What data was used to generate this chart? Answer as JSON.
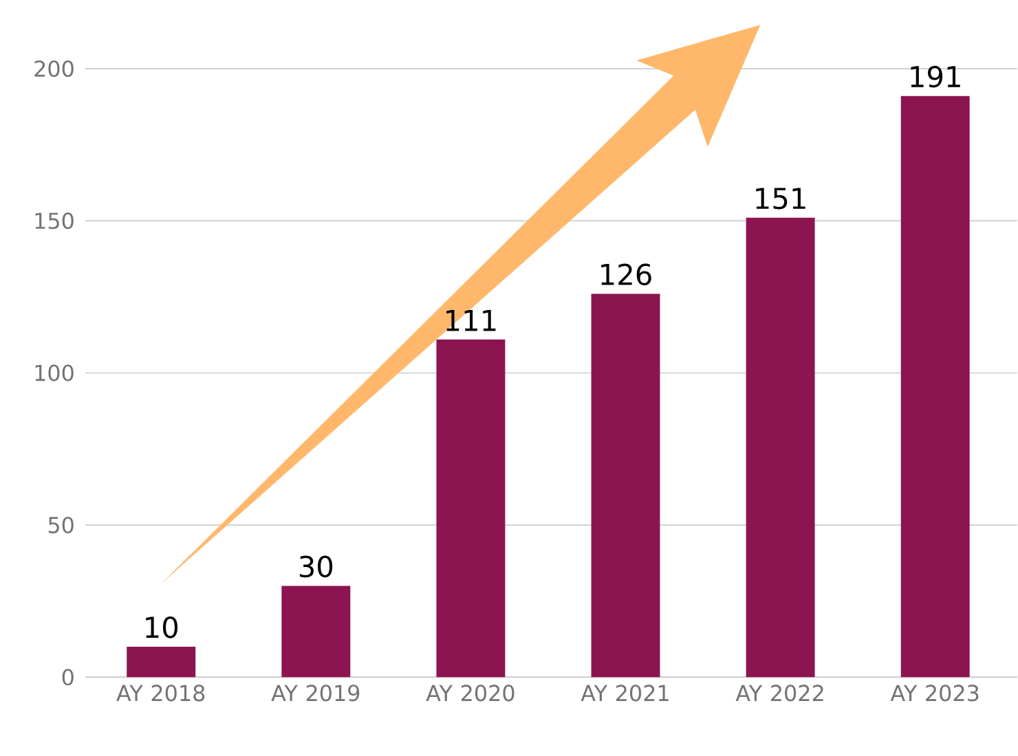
{
  "chart_data": {
    "type": "bar",
    "categories": [
      "AY 2018",
      "AY 2019",
      "AY 2020",
      "AY 2021",
      "AY 2022",
      "AY 2023"
    ],
    "values": [
      10,
      30,
      111,
      126,
      151,
      191
    ],
    "color": "#8c1450",
    "ylim": [
      0,
      200
    ],
    "yticks": [
      0,
      50,
      100,
      150,
      200
    ],
    "grid": "y",
    "data_labels": true
  }
}
